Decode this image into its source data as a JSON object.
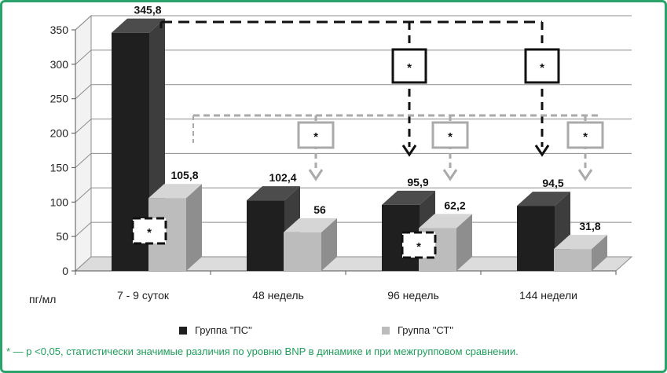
{
  "chart_data": {
    "type": "bar",
    "categories": [
      "7 - 9 суток",
      "48 недель",
      "96 недель",
      "144 недели"
    ],
    "series": [
      {
        "name": "Группа \"ПС\"",
        "values": [
          345.8,
          102.4,
          95.9,
          94.5
        ],
        "labels": [
          "345,8",
          "102,4",
          "95,9",
          "94,5"
        ]
      },
      {
        "name": "Группа \"СТ\"",
        "values": [
          105.8,
          56,
          62.2,
          31.8
        ],
        "labels": [
          "105,8",
          "56",
          "62,2",
          "31,8"
        ]
      }
    ],
    "yticks": [
      "0",
      "50",
      "100",
      "150",
      "200",
      "250",
      "300",
      "350"
    ],
    "ylim": [
      0,
      350
    ],
    "ylabel": "пг/мл",
    "title": "",
    "grid": true,
    "legend_position": "bottom",
    "significance_marker": "*",
    "colors": {
      "ps_front": "#1f1f1f",
      "ps_side": "#3d3d3d",
      "ps_top": "#4c4c4c",
      "st_front": "#bcbcbc",
      "st_side": "#8e8e8e",
      "st_top": "#d6d6d6",
      "dark_arrow": "#111111",
      "light_arrow": "#aaaaaa"
    }
  },
  "footnote": "* — р <0,05, статистически значимые различия по уровню BNP в динамике и при межгрупповом сравнении.",
  "colors": {
    "frame_border": "#29a36a",
    "footnote_text": "#1e9e5a"
  }
}
